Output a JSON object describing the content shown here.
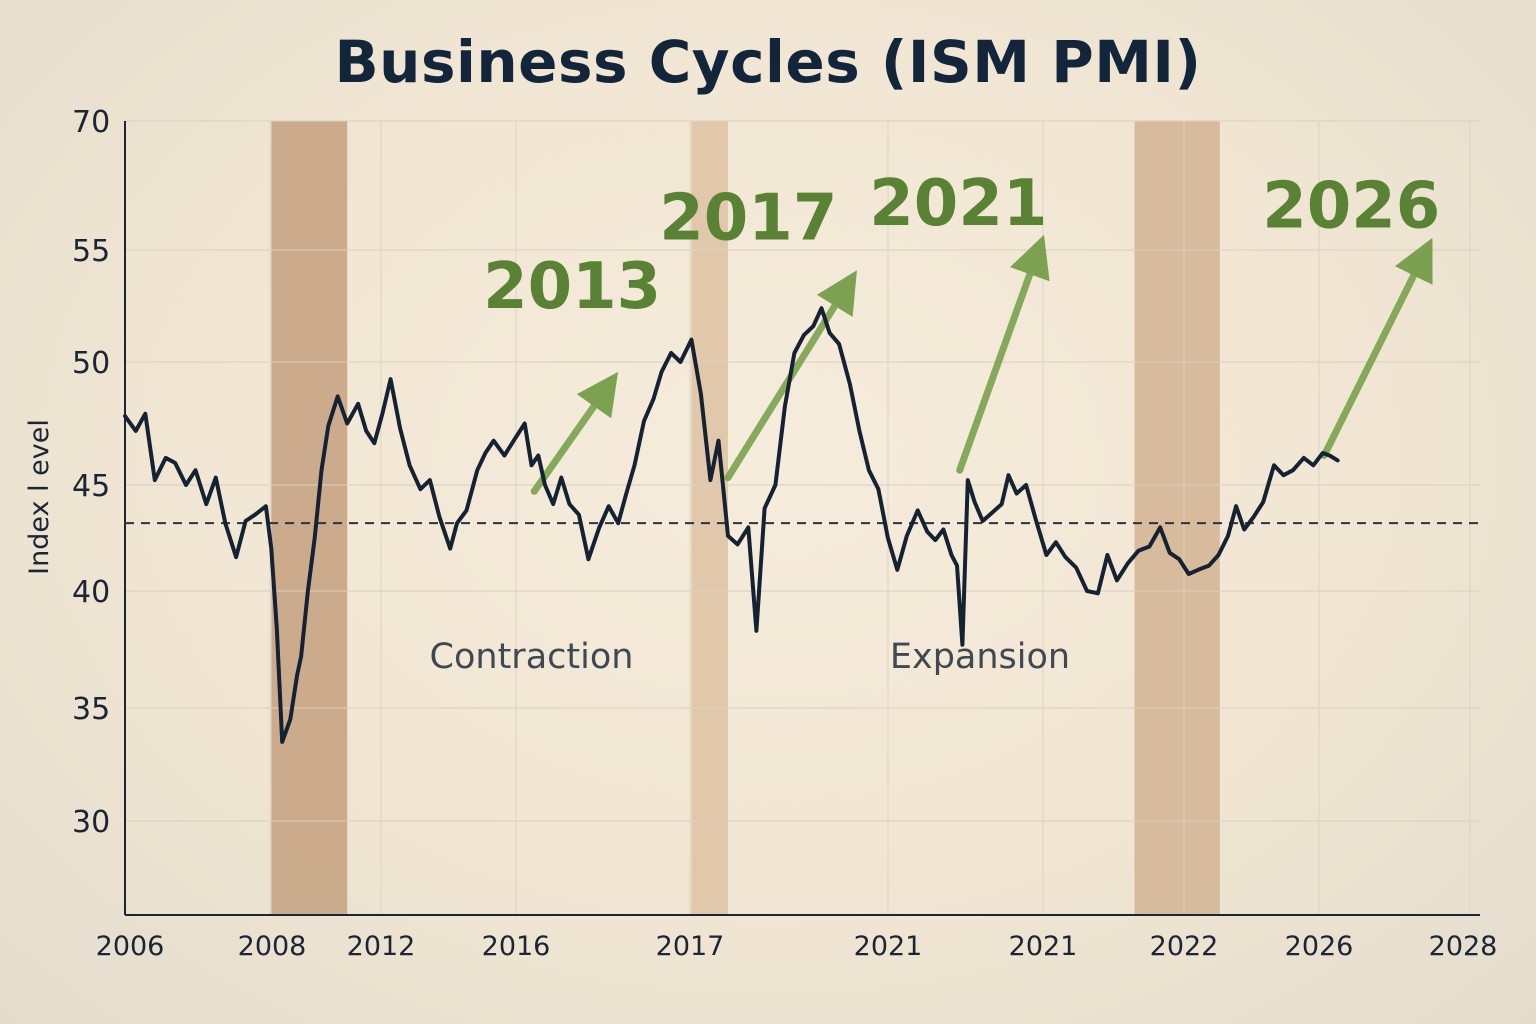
{
  "title": "Business Cycles (ISM PMI)",
  "chart_data": {
    "type": "line",
    "title": "Business Cycles (ISM PMI)",
    "xlabel": "",
    "ylabel": "Index l evel",
    "ylim_display": [
      26,
      70
    ],
    "yticks": [
      30,
      35,
      40,
      45,
      50,
      55,
      70
    ],
    "xtick_labels": [
      "2006",
      "2008",
      "2012",
      "2016",
      "2017",
      "2021",
      "2021",
      "2022",
      "2026",
      "2028"
    ],
    "reference_line": {
      "value": 43.2,
      "style": "dashed"
    },
    "recession_bands": [
      {
        "from": 0.108,
        "to": 0.164,
        "shade": "dark"
      },
      {
        "from": 0.418,
        "to": 0.445,
        "shade": "light"
      },
      {
        "from": 0.745,
        "to": 0.808,
        "shade": "mid"
      }
    ],
    "region_labels": [
      {
        "text": "Contraction",
        "x": 0.3,
        "y": 36.7
      },
      {
        "text": "Expansion",
        "x": 0.631,
        "y": 36.7
      }
    ],
    "annotations": [
      {
        "text": "2013",
        "x": 0.33,
        "y": 52.4,
        "arrow_from": [
          0.302,
          44.7
        ],
        "arrow_to": [
          0.355,
          48.9
        ]
      },
      {
        "text": "2017",
        "x": 0.46,
        "y": 56.2,
        "arrow_from": [
          0.445,
          45.3
        ],
        "arrow_to": [
          0.532,
          53.3
        ]
      },
      {
        "text": "2021",
        "x": 0.615,
        "y": 57.9,
        "arrow_from": [
          0.616,
          45.6
        ],
        "arrow_to": [
          0.673,
          54.8
        ]
      },
      {
        "text": "2026",
        "x": 0.905,
        "y": 57.6,
        "arrow_from": [
          0.885,
          46.2
        ],
        "arrow_to": [
          0.958,
          54.7
        ]
      }
    ],
    "series": [
      {
        "x": [
          0.0,
          0.008,
          0.015,
          0.022,
          0.03,
          0.037,
          0.045,
          0.052,
          0.06,
          0.067,
          0.074,
          0.082,
          0.089,
          0.096,
          0.104,
          0.108,
          0.112,
          0.116,
          0.122,
          0.127,
          0.13,
          0.135,
          0.14,
          0.145,
          0.15,
          0.157,
          0.164,
          0.172,
          0.178,
          0.184,
          0.19,
          0.196,
          0.203,
          0.21,
          0.218,
          0.225,
          0.232,
          0.24,
          0.245,
          0.252,
          0.26,
          0.266,
          0.272,
          0.28,
          0.288,
          0.295,
          0.3,
          0.305,
          0.31,
          0.316,
          0.322,
          0.328,
          0.335,
          0.342,
          0.35,
          0.357,
          0.364,
          0.37,
          0.376,
          0.383,
          0.39,
          0.396,
          0.403,
          0.41,
          0.418,
          0.425,
          0.432,
          0.438,
          0.445,
          0.452,
          0.46,
          0.466,
          0.472,
          0.48,
          0.487,
          0.494,
          0.501,
          0.508,
          0.514,
          0.52,
          0.527,
          0.535,
          0.542,
          0.549,
          0.556,
          0.563,
          0.57,
          0.577,
          0.585,
          0.592,
          0.598,
          0.604,
          0.61,
          0.614,
          0.618,
          0.622,
          0.627,
          0.633,
          0.64,
          0.647,
          0.652,
          0.658,
          0.665,
          0.672,
          0.68,
          0.687,
          0.694,
          0.702,
          0.71,
          0.718,
          0.725,
          0.732,
          0.74,
          0.748,
          0.756,
          0.764,
          0.771,
          0.778,
          0.785,
          0.792,
          0.8,
          0.807,
          0.814,
          0.82,
          0.826,
          0.833,
          0.84,
          0.848,
          0.855,
          0.862,
          0.87,
          0.877,
          0.884,
          0.889,
          0.895
        ],
        "y": [
          47.8,
          47.2,
          47.9,
          45.2,
          46.1,
          45.9,
          45.0,
          45.6,
          44.1,
          45.3,
          43.2,
          41.6,
          43.3,
          43.6,
          44.0,
          42.0,
          38.4,
          33.5,
          34.5,
          36.4,
          37.2,
          40.0,
          42.5,
          45.6,
          47.4,
          48.6,
          47.5,
          48.3,
          47.2,
          46.7,
          47.9,
          49.3,
          47.3,
          45.8,
          44.8,
          45.2,
          43.5,
          42.0,
          43.2,
          43.8,
          45.6,
          46.3,
          46.8,
          46.2,
          46.9,
          47.5,
          45.8,
          46.2,
          45.0,
          44.1,
          45.3,
          44.1,
          43.6,
          41.5,
          43.0,
          44.0,
          43.2,
          44.6,
          45.8,
          47.6,
          48.5,
          49.6,
          50.4,
          50.0,
          51.0,
          48.7,
          45.2,
          46.8,
          42.6,
          42.2,
          43.0,
          38.3,
          43.9,
          45.0,
          48.2,
          50.4,
          51.2,
          51.6,
          52.4,
          51.3,
          50.8,
          49.1,
          47.2,
          45.6,
          44.8,
          42.5,
          41.0,
          42.6,
          43.8,
          42.8,
          42.4,
          42.9,
          41.7,
          41.2,
          37.7,
          45.2,
          44.2,
          43.3,
          43.7,
          44.1,
          45.4,
          44.6,
          45.0,
          43.4,
          41.7,
          42.3,
          41.6,
          41.1,
          40.0,
          39.9,
          41.7,
          40.5,
          41.3,
          41.9,
          42.1,
          43.0,
          41.8,
          41.5,
          40.8,
          41.0,
          41.2,
          41.7,
          42.6,
          44.0,
          42.9,
          43.5,
          44.2,
          45.8,
          45.4,
          45.6,
          46.1,
          45.8,
          46.3,
          46.2,
          46.0
        ]
      }
    ]
  }
}
